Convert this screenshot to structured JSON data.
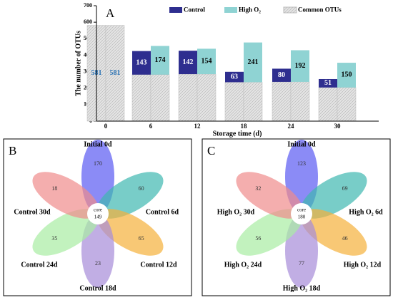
{
  "chart_data": {
    "type": "bar",
    "title": "A",
    "categories": [
      "0",
      "6",
      "12",
      "18",
      "24",
      "30"
    ],
    "series": [
      {
        "name": "Control",
        "color": "#2e2e8f",
        "values": [
          null,
          143,
          142,
          63,
          80,
          51
        ]
      },
      {
        "name": "High O₂",
        "color": "#8fd3d3",
        "values": [
          null,
          174,
          154,
          241,
          192,
          150
        ]
      },
      {
        "name": "Common OTUs",
        "color": "#d6d6d6",
        "values": [
          581,
          282,
          285,
          236,
          238,
          204
        ]
      }
    ],
    "xlabel": "Storage time (d)",
    "ylabel": "The number of OTUs",
    "ylim": [
      0,
      700
    ],
    "yticks": [
      0,
      100,
      200,
      300,
      400,
      500,
      600,
      700
    ]
  },
  "venn_b": {
    "label": "B",
    "core_label": "core",
    "core": 149,
    "petals": [
      {
        "label": "Initial 0d",
        "value": 170
      },
      {
        "label": "Control 6d",
        "value": 60
      },
      {
        "label": "Control 12d",
        "value": 65
      },
      {
        "label": "Control 18d",
        "value": 23
      },
      {
        "label": "Control 24d",
        "value": 35
      },
      {
        "label": "Control 30d",
        "value": 18
      }
    ]
  },
  "venn_c": {
    "label": "C",
    "core_label": "core",
    "core": 180,
    "petals": [
      {
        "label": "Initial 0d",
        "value": 123
      },
      {
        "label": "High O₂ 6d",
        "value": 69
      },
      {
        "label": "High O₂ 12d",
        "value": 46
      },
      {
        "label": "High O₂ 18d",
        "value": 77
      },
      {
        "label": "High O₂ 24d",
        "value": 56
      },
      {
        "label": "High O₂ 30d",
        "value": 32
      }
    ]
  }
}
